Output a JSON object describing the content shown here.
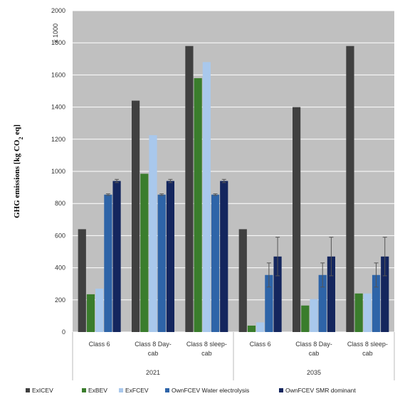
{
  "chart_data": {
    "type": "bar",
    "ylabel_main": "GHG emissions [kg CO",
    "ylabel_sub": "2",
    "ylabel_end": " eq]",
    "scale_note": "x 1000",
    "ylim": [
      0,
      2000
    ],
    "yticks": [
      "0",
      "200",
      "400",
      "600",
      "800",
      "1000",
      "1200",
      "1400",
      "1600",
      "1800",
      "2000"
    ],
    "grid": true,
    "legend_position": "bottom",
    "groups": [
      {
        "year": "2021",
        "categories": [
          [
            "Class 6"
          ],
          [
            "Class 8 Day-",
            "cab"
          ],
          [
            "Class 8 sleep-",
            "cab"
          ]
        ]
      },
      {
        "year": "2035",
        "categories": [
          [
            "Class 6"
          ],
          [
            "Class 8 Day-",
            "cab"
          ],
          [
            "Class 8 sleep-",
            "cab"
          ]
        ]
      }
    ],
    "series": [
      {
        "name": "ExICEV",
        "color": "#404040",
        "values": [
          640,
          1440,
          1780,
          640,
          1400,
          1780
        ],
        "err": [
          0,
          0,
          0,
          0,
          0,
          0
        ]
      },
      {
        "name": "ExBEV",
        "color": "#3a7d2c",
        "values": [
          235,
          985,
          1580,
          40,
          165,
          240
        ],
        "err": [
          0,
          0,
          0,
          0,
          0,
          0
        ]
      },
      {
        "name": "ExFCEV",
        "color": "#a9c8ec",
        "values": [
          270,
          1225,
          1680,
          60,
          205,
          240
        ],
        "err": [
          0,
          0,
          0,
          0,
          0,
          0
        ]
      },
      {
        "name": "OwnFCEV Water electrolysis",
        "color": "#2e64a8",
        "values": [
          855,
          855,
          855,
          355,
          355,
          355
        ],
        "err": [
          5,
          5,
          5,
          75,
          75,
          75
        ]
      },
      {
        "name": "OwnFCEV SMR dominant",
        "color": "#14265e",
        "values": [
          940,
          940,
          940,
          470,
          470,
          470
        ],
        "err": [
          10,
          10,
          10,
          120,
          120,
          120
        ]
      }
    ]
  }
}
